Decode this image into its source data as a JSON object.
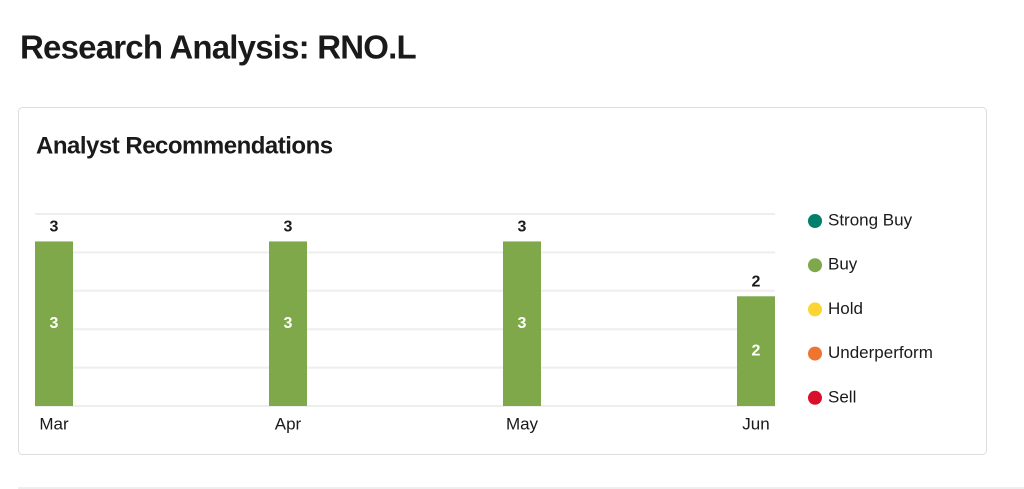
{
  "page": {
    "title": "Research Analysis: RNO.L"
  },
  "chart_data": {
    "type": "stacked_bar",
    "title": "Analyst Recommendations",
    "categories": [
      "Mar",
      "Apr",
      "May",
      "Jun"
    ],
    "series": [
      {
        "name": "Strong Buy",
        "color": "#00806a",
        "values": [
          0,
          0,
          0,
          0
        ]
      },
      {
        "name": "Buy",
        "color": "#7ea84a",
        "values": [
          3,
          3,
          3,
          2
        ]
      },
      {
        "name": "Hold",
        "color": "#fcd535",
        "values": [
          0,
          0,
          0,
          0
        ]
      },
      {
        "name": "Underperform",
        "color": "#f07431",
        "values": [
          0,
          0,
          0,
          0
        ]
      },
      {
        "name": "Sell",
        "color": "#d8102b",
        "values": [
          0,
          0,
          0,
          0
        ]
      }
    ],
    "totals": [
      3,
      3,
      3,
      2
    ],
    "ylim": [
      0,
      3.5
    ],
    "yticks": [
      0,
      0.7,
      1.4,
      2.1,
      2.8,
      3.5
    ],
    "grid": true,
    "legend": "right"
  }
}
